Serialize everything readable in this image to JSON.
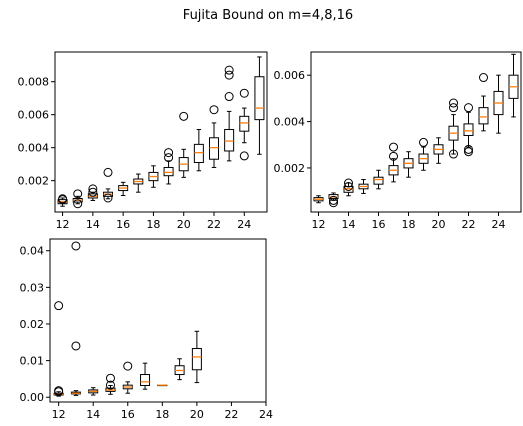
{
  "title": "Fujita Bound on m=4,8,16",
  "colors": {
    "box": "#000000",
    "median": "#ff7f0e",
    "flier": "#000000"
  },
  "chart_data": [
    {
      "type": "box",
      "title": "",
      "xlim": [
        11.5,
        25.5
      ],
      "ylim": [
        0.0001,
        0.0098
      ],
      "xticks": [
        12,
        14,
        16,
        18,
        20,
        22,
        24
      ],
      "yticks": [
        0.002,
        0.004,
        0.006,
        0.008
      ],
      "ytick_labels": [
        "0.002",
        "0.004",
        "0.006",
        "0.008"
      ],
      "boxes": [
        {
          "x": 12,
          "whislo": 0.00045,
          "q1": 0.0006,
          "med": 0.00072,
          "q3": 0.00085,
          "whishi": 0.00095,
          "fliers": [
            0.00085,
            0.0009
          ]
        },
        {
          "x": 13,
          "whislo": 0.0006,
          "q1": 0.0007,
          "med": 0.00082,
          "q3": 0.00092,
          "whishi": 0.00105,
          "fliers": [
            0.0006,
            0.0012
          ]
        },
        {
          "x": 14,
          "whislo": 0.0008,
          "q1": 0.00095,
          "med": 0.00105,
          "q3": 0.0012,
          "whishi": 0.0013,
          "fliers": [
            0.0013,
            0.0015
          ]
        },
        {
          "x": 15,
          "whislo": 0.0009,
          "q1": 0.00105,
          "med": 0.00118,
          "q3": 0.0013,
          "whishi": 0.0015,
          "fliers": [
            0.00095,
            0.0025
          ]
        },
        {
          "x": 16,
          "whislo": 0.0011,
          "q1": 0.0014,
          "med": 0.00155,
          "q3": 0.0017,
          "whishi": 0.0019,
          "fliers": []
        },
        {
          "x": 17,
          "whislo": 0.0013,
          "q1": 0.0018,
          "med": 0.00195,
          "q3": 0.0021,
          "whishi": 0.0024,
          "fliers": []
        },
        {
          "x": 18,
          "whislo": 0.0016,
          "q1": 0.002,
          "med": 0.00225,
          "q3": 0.0025,
          "whishi": 0.0029,
          "fliers": []
        },
        {
          "x": 19,
          "whislo": 0.0018,
          "q1": 0.0023,
          "med": 0.0025,
          "q3": 0.0028,
          "whishi": 0.0032,
          "fliers": [
            0.0034,
            0.0037
          ]
        },
        {
          "x": 20,
          "whislo": 0.0022,
          "q1": 0.0026,
          "med": 0.003,
          "q3": 0.0034,
          "whishi": 0.0039,
          "fliers": [
            0.0059
          ]
        },
        {
          "x": 21,
          "whislo": 0.0026,
          "q1": 0.0031,
          "med": 0.0037,
          "q3": 0.0042,
          "whishi": 0.0051,
          "fliers": []
        },
        {
          "x": 22,
          "whislo": 0.0028,
          "q1": 0.0033,
          "med": 0.004,
          "q3": 0.0046,
          "whishi": 0.0055,
          "fliers": [
            0.0063
          ]
        },
        {
          "x": 23,
          "whislo": 0.0032,
          "q1": 0.0038,
          "med": 0.0044,
          "q3": 0.0051,
          "whishi": 0.0062,
          "fliers": [
            0.0071,
            0.0084,
            0.0087
          ]
        },
        {
          "x": 24,
          "whislo": 0.0043,
          "q1": 0.005,
          "med": 0.0055,
          "q3": 0.0059,
          "whishi": 0.0064,
          "fliers": [
            0.0035,
            0.0073
          ]
        },
        {
          "x": 25,
          "whislo": 0.0036,
          "q1": 0.0057,
          "med": 0.0064,
          "q3": 0.0083,
          "whishi": 0.0095,
          "fliers": []
        }
      ]
    },
    {
      "type": "box",
      "title": "",
      "xlim": [
        11.5,
        25.5
      ],
      "ylim": [
        0.0001,
        0.007
      ],
      "xticks": [
        12,
        14,
        16,
        18,
        20,
        22,
        24
      ],
      "yticks": [
        0.002,
        0.004,
        0.006
      ],
      "ytick_labels": [
        "0.002",
        "0.004",
        "0.006"
      ],
      "boxes": [
        {
          "x": 12,
          "whislo": 0.0005,
          "q1": 0.00058,
          "med": 0.00065,
          "q3": 0.00072,
          "whishi": 0.0008,
          "fliers": []
        },
        {
          "x": 13,
          "whislo": 0.0006,
          "q1": 0.00068,
          "med": 0.00075,
          "q3": 0.00085,
          "whishi": 0.00092,
          "fliers": [
            0.0005,
            0.0006
          ]
        },
        {
          "x": 14,
          "whislo": 0.0008,
          "q1": 0.00095,
          "med": 0.0011,
          "q3": 0.0012,
          "whishi": 0.00135,
          "fliers": [
            0.0012,
            0.00135
          ]
        },
        {
          "x": 15,
          "whislo": 0.0009,
          "q1": 0.0011,
          "med": 0.0012,
          "q3": 0.0013,
          "whishi": 0.0015,
          "fliers": []
        },
        {
          "x": 16,
          "whislo": 0.0011,
          "q1": 0.0013,
          "med": 0.0015,
          "q3": 0.0016,
          "whishi": 0.0019,
          "fliers": []
        },
        {
          "x": 17,
          "whislo": 0.0014,
          "q1": 0.0017,
          "med": 0.0019,
          "q3": 0.0021,
          "whishi": 0.0024,
          "fliers": [
            0.0025,
            0.0029
          ]
        },
        {
          "x": 18,
          "whislo": 0.0016,
          "q1": 0.002,
          "med": 0.0022,
          "q3": 0.0024,
          "whishi": 0.0027,
          "fliers": []
        },
        {
          "x": 19,
          "whislo": 0.0019,
          "q1": 0.0022,
          "med": 0.0024,
          "q3": 0.0026,
          "whishi": 0.0029,
          "fliers": [
            0.0031
          ]
        },
        {
          "x": 20,
          "whislo": 0.0022,
          "q1": 0.0026,
          "med": 0.0028,
          "q3": 0.003,
          "whishi": 0.0033,
          "fliers": []
        },
        {
          "x": 21,
          "whislo": 0.0026,
          "q1": 0.0032,
          "med": 0.0035,
          "q3": 0.0038,
          "whishi": 0.0043,
          "fliers": [
            0.0026,
            0.0046,
            0.0048
          ]
        },
        {
          "x": 22,
          "whislo": 0.0029,
          "q1": 0.0034,
          "med": 0.0036,
          "q3": 0.0039,
          "whishi": 0.0044,
          "fliers": [
            0.0027,
            0.0028,
            0.0046
          ]
        },
        {
          "x": 23,
          "whislo": 0.0036,
          "q1": 0.0039,
          "med": 0.0042,
          "q3": 0.0046,
          "whishi": 0.0051,
          "fliers": [
            0.0059
          ]
        },
        {
          "x": 24,
          "whislo": 0.0035,
          "q1": 0.0043,
          "med": 0.0048,
          "q3": 0.0053,
          "whishi": 0.006,
          "fliers": []
        },
        {
          "x": 25,
          "whislo": 0.0042,
          "q1": 0.005,
          "med": 0.0055,
          "q3": 0.006,
          "whishi": 0.0069,
          "fliers": []
        }
      ]
    },
    {
      "type": "box",
      "title": "",
      "xlim": [
        11.5,
        24
      ],
      "ylim": [
        -0.0013,
        0.0432
      ],
      "xticks": [
        12,
        14,
        16,
        18,
        20,
        22,
        24
      ],
      "yticks": [
        0.0,
        0.01,
        0.02,
        0.03,
        0.04
      ],
      "ytick_labels": [
        "0.00",
        "0.01",
        "0.02",
        "0.03",
        "0.04"
      ],
      "boxes": [
        {
          "x": 12,
          "whislo": 0.0003,
          "q1": 0.0006,
          "med": 0.0008,
          "q3": 0.0011,
          "whishi": 0.0015,
          "fliers": [
            0.0015,
            0.0018,
            0.025
          ]
        },
        {
          "x": 13,
          "whislo": 0.0005,
          "q1": 0.0009,
          "med": 0.0011,
          "q3": 0.0014,
          "whishi": 0.0018,
          "fliers": [
            0.014,
            0.0413
          ]
        },
        {
          "x": 14,
          "whislo": 0.0006,
          "q1": 0.0012,
          "med": 0.0016,
          "q3": 0.002,
          "whishi": 0.0026,
          "fliers": []
        },
        {
          "x": 15,
          "whislo": 0.0008,
          "q1": 0.0016,
          "med": 0.002,
          "q3": 0.0025,
          "whishi": 0.0032,
          "fliers": [
            0.0033,
            0.0052
          ]
        },
        {
          "x": 16,
          "whislo": 0.0011,
          "q1": 0.0023,
          "med": 0.0028,
          "q3": 0.0033,
          "whishi": 0.0042,
          "fliers": [
            0.0085
          ]
        },
        {
          "x": 17,
          "whislo": 0.0022,
          "q1": 0.0032,
          "med": 0.0042,
          "q3": 0.0062,
          "whishi": 0.0093,
          "fliers": []
        },
        {
          "x": 18,
          "whislo": 0.0033,
          "q1": 0.0033,
          "med": 0.0033,
          "q3": 0.0033,
          "whishi": 0.0033,
          "fliers": []
        },
        {
          "x": 19,
          "whislo": 0.0048,
          "q1": 0.0062,
          "med": 0.0073,
          "q3": 0.0086,
          "whishi": 0.0105,
          "fliers": []
        },
        {
          "x": 20,
          "whislo": 0.004,
          "q1": 0.0075,
          "med": 0.011,
          "q3": 0.0133,
          "whishi": 0.018,
          "fliers": []
        }
      ]
    }
  ]
}
